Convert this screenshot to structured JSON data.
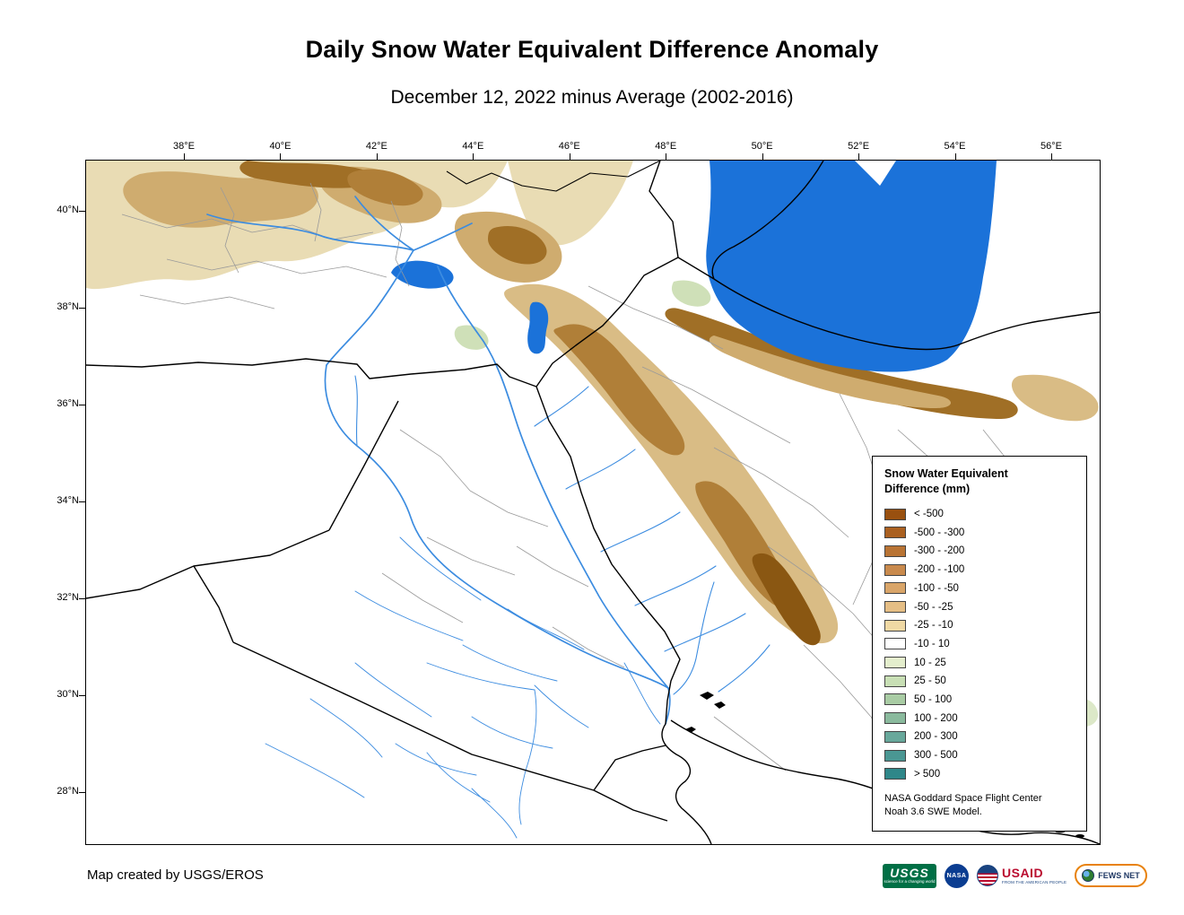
{
  "page": {
    "title": "Daily Snow Water Equivalent Difference Anomaly",
    "subtitle": "December 12, 2022 minus Average (2002-2016)",
    "credit": "Map created by USGS/EROS"
  },
  "map": {
    "lon_ticks": [
      "38°E",
      "40°E",
      "42°E",
      "44°E",
      "46°E",
      "48°E",
      "50°E",
      "52°E",
      "54°E",
      "56°E"
    ],
    "lat_ticks": [
      "40°N",
      "38°N",
      "36°N",
      "34°N",
      "32°N",
      "30°N",
      "28°N"
    ],
    "colors": {
      "sea_water": "#1B72D9",
      "river": "#3C8CE0",
      "country_border": "#000000",
      "admin_border": "#9A9A9A",
      "terrain_pale": "#E9DCB4",
      "terrain_mid": "#CFAC6F",
      "terrain_dark": "#A06F26",
      "terrain_ridge": "#8A5712",
      "terrain_green": "#CFE0B8"
    }
  },
  "legend": {
    "title": [
      "Snow Water Equivalent",
      "Difference (mm)"
    ],
    "entries": [
      {
        "label": "< -500",
        "color": "#99500F"
      },
      {
        "label": "-500 - -300",
        "color": "#AA6020"
      },
      {
        "label": "-300 - -200",
        "color": "#B97434"
      },
      {
        "label": "-200 - -100",
        "color": "#C98A4D"
      },
      {
        "label": "-100 - -50",
        "color": "#D9A569"
      },
      {
        "label": "-50 - -25",
        "color": "#E5BE85"
      },
      {
        "label": "-25 - -10",
        "color": "#F0D9A4"
      },
      {
        "label": "-10 - 10",
        "color": "#FFFFFF"
      },
      {
        "label": "10 - 25",
        "color": "#E4EECD"
      },
      {
        "label": "25 - 50",
        "color": "#C8DFB5"
      },
      {
        "label": "50 - 100",
        "color": "#A9CCA4"
      },
      {
        "label": "100 - 200",
        "color": "#8ABA9D"
      },
      {
        "label": "200 - 300",
        "color": "#68A89B"
      },
      {
        "label": "300 - 500",
        "color": "#4A9793"
      },
      {
        "label": "> 500",
        "color": "#2F8789"
      }
    ],
    "source": [
      "NASA Goddard Space Flight Center",
      "Noah 3.6 SWE Model."
    ]
  },
  "logos": {
    "usgs": {
      "label": "USGS",
      "tagline": "science for a changing world",
      "color": "#006F45"
    },
    "nasa": {
      "label": "NASA",
      "color": "#0B3D91"
    },
    "usaid": {
      "label": "USAID",
      "tagline": "FROM THE AMERICAN PEOPLE",
      "color": "#BA0C2F"
    },
    "fews": {
      "label": "FEWS NET",
      "color": "#1F3864",
      "accent": "#E8820C"
    }
  }
}
